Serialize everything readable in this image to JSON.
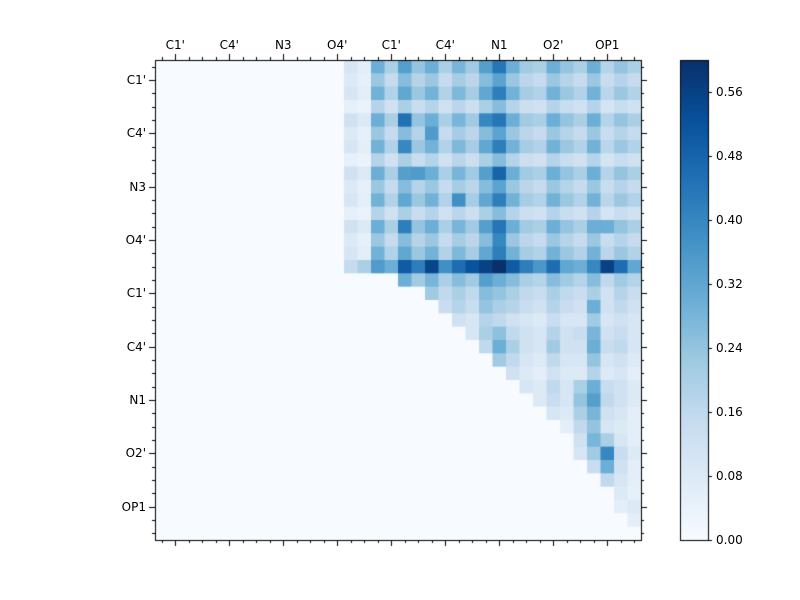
{
  "chart_data": {
    "type": "heatmap",
    "title": "",
    "xlabel": "",
    "ylabel": "",
    "x_labels": [
      "C1'",
      "C4'",
      "N3",
      "O4'",
      "C1'",
      "C4'",
      "N1",
      "O2'",
      "OP1"
    ],
    "y_labels": [
      "C1'",
      "C4'",
      "N3",
      "O4'",
      "C1'",
      "C4'",
      "N1",
      "O2'",
      "OP1"
    ],
    "label_cell_positions": [
      1,
      5,
      9,
      13,
      17,
      21,
      25,
      29,
      33
    ],
    "n": 36,
    "vmin": 0.0,
    "vmax": 0.6,
    "layout": {
      "upper_triangular": true,
      "grid": false,
      "colorbar_position": "right"
    },
    "colormap": {
      "name": "Blues",
      "stops": [
        "#f7fbff",
        "#deebf7",
        "#c6dbef",
        "#9ecae1",
        "#6baed6",
        "#4292c6",
        "#2171b5",
        "#08519c",
        "#08306b"
      ]
    },
    "frame_color": "#000000",
    "background_color": "#ffffff",
    "colorbar": {
      "tick_labels": [
        "0.00",
        "0.08",
        "0.16",
        "0.24",
        "0.32",
        "0.40",
        "0.48",
        "0.56"
      ],
      "tick_values": [
        0.0,
        0.08,
        0.16,
        0.24,
        0.32,
        0.4,
        0.48,
        0.56
      ]
    },
    "values": [
      [
        0,
        0,
        0,
        0,
        0,
        0,
        0,
        0,
        0,
        0,
        0,
        0,
        0,
        0,
        0.1,
        0.06,
        0.3,
        0.2,
        0.34,
        0.24,
        0.3,
        0.2,
        0.28,
        0.22,
        0.34,
        0.44,
        0.3,
        0.22,
        0.2,
        0.3,
        0.24,
        0.2,
        0.3,
        0.18,
        0.24,
        0.2
      ],
      [
        0,
        0,
        0,
        0,
        0,
        0,
        0,
        0,
        0,
        0,
        0,
        0,
        0,
        0,
        0.08,
        0.05,
        0.23,
        0.15,
        0.26,
        0.18,
        0.23,
        0.15,
        0.21,
        0.17,
        0.26,
        0.33,
        0.23,
        0.17,
        0.15,
        0.23,
        0.18,
        0.15,
        0.23,
        0.14,
        0.18,
        0.15
      ],
      [
        0,
        0,
        0,
        0,
        0,
        0,
        0,
        0,
        0,
        0,
        0,
        0,
        0,
        0,
        0.1,
        0.06,
        0.29,
        0.19,
        0.32,
        0.23,
        0.29,
        0.19,
        0.27,
        0.21,
        0.32,
        0.42,
        0.29,
        0.21,
        0.19,
        0.29,
        0.23,
        0.19,
        0.29,
        0.17,
        0.23,
        0.19
      ],
      [
        0,
        0,
        0,
        0,
        0,
        0,
        0,
        0,
        0,
        0,
        0,
        0,
        0,
        0,
        0.05,
        0.04,
        0.18,
        0.12,
        0.2,
        0.14,
        0.18,
        0.12,
        0.17,
        0.13,
        0.2,
        0.26,
        0.18,
        0.13,
        0.12,
        0.18,
        0.14,
        0.12,
        0.18,
        0.11,
        0.14,
        0.12
      ],
      [
        0,
        0,
        0,
        0,
        0,
        0,
        0,
        0,
        0,
        0,
        0,
        0,
        0,
        0,
        0.12,
        0.08,
        0.3,
        0.2,
        0.45,
        0.24,
        0.3,
        0.2,
        0.28,
        0.22,
        0.4,
        0.44,
        0.3,
        0.22,
        0.2,
        0.3,
        0.24,
        0.2,
        0.3,
        0.18,
        0.24,
        0.2
      ],
      [
        0,
        0,
        0,
        0,
        0,
        0,
        0,
        0,
        0,
        0,
        0,
        0,
        0,
        0,
        0.08,
        0.05,
        0.23,
        0.15,
        0.26,
        0.18,
        0.35,
        0.15,
        0.21,
        0.17,
        0.26,
        0.33,
        0.23,
        0.17,
        0.15,
        0.23,
        0.18,
        0.15,
        0.23,
        0.14,
        0.18,
        0.15
      ],
      [
        0,
        0,
        0,
        0,
        0,
        0,
        0,
        0,
        0,
        0,
        0,
        0,
        0,
        0,
        0.1,
        0.06,
        0.29,
        0.19,
        0.4,
        0.23,
        0.29,
        0.19,
        0.27,
        0.21,
        0.32,
        0.42,
        0.29,
        0.21,
        0.19,
        0.29,
        0.23,
        0.19,
        0.29,
        0.17,
        0.23,
        0.19
      ],
      [
        0,
        0,
        0,
        0,
        0,
        0,
        0,
        0,
        0,
        0,
        0,
        0,
        0,
        0,
        0.05,
        0.04,
        0.18,
        0.12,
        0.2,
        0.14,
        0.18,
        0.12,
        0.17,
        0.13,
        0.2,
        0.26,
        0.18,
        0.13,
        0.12,
        0.18,
        0.14,
        0.12,
        0.18,
        0.11,
        0.14,
        0.12
      ],
      [
        0,
        0,
        0,
        0,
        0,
        0,
        0,
        0,
        0,
        0,
        0,
        0,
        0,
        0,
        0.12,
        0.08,
        0.3,
        0.2,
        0.34,
        0.35,
        0.3,
        0.2,
        0.28,
        0.22,
        0.34,
        0.48,
        0.3,
        0.22,
        0.2,
        0.3,
        0.24,
        0.2,
        0.3,
        0.18,
        0.24,
        0.2
      ],
      [
        0,
        0,
        0,
        0,
        0,
        0,
        0,
        0,
        0,
        0,
        0,
        0,
        0,
        0,
        0.08,
        0.05,
        0.23,
        0.15,
        0.26,
        0.18,
        0.23,
        0.15,
        0.21,
        0.17,
        0.26,
        0.33,
        0.23,
        0.17,
        0.15,
        0.23,
        0.18,
        0.15,
        0.23,
        0.14,
        0.18,
        0.15
      ],
      [
        0,
        0,
        0,
        0,
        0,
        0,
        0,
        0,
        0,
        0,
        0,
        0,
        0,
        0,
        0.1,
        0.06,
        0.29,
        0.19,
        0.32,
        0.23,
        0.29,
        0.19,
        0.38,
        0.21,
        0.32,
        0.42,
        0.29,
        0.21,
        0.19,
        0.29,
        0.23,
        0.19,
        0.29,
        0.17,
        0.23,
        0.19
      ],
      [
        0,
        0,
        0,
        0,
        0,
        0,
        0,
        0,
        0,
        0,
        0,
        0,
        0,
        0,
        0.05,
        0.04,
        0.18,
        0.12,
        0.2,
        0.14,
        0.18,
        0.12,
        0.17,
        0.13,
        0.2,
        0.26,
        0.18,
        0.13,
        0.12,
        0.18,
        0.14,
        0.12,
        0.18,
        0.11,
        0.14,
        0.12
      ],
      [
        0,
        0,
        0,
        0,
        0,
        0,
        0,
        0,
        0,
        0,
        0,
        0,
        0,
        0,
        0.12,
        0.08,
        0.3,
        0.2,
        0.42,
        0.24,
        0.3,
        0.2,
        0.28,
        0.22,
        0.34,
        0.44,
        0.3,
        0.22,
        0.2,
        0.3,
        0.24,
        0.2,
        0.3,
        0.3,
        0.24,
        0.2
      ],
      [
        0,
        0,
        0,
        0,
        0,
        0,
        0,
        0,
        0,
        0,
        0,
        0,
        0,
        0,
        0.08,
        0.05,
        0.23,
        0.15,
        0.26,
        0.18,
        0.23,
        0.15,
        0.21,
        0.17,
        0.26,
        0.4,
        0.23,
        0.17,
        0.15,
        0.23,
        0.18,
        0.15,
        0.23,
        0.14,
        0.18,
        0.15
      ],
      [
        0,
        0,
        0,
        0,
        0,
        0,
        0,
        0,
        0,
        0,
        0,
        0,
        0,
        0,
        0.1,
        0.06,
        0.29,
        0.19,
        0.32,
        0.23,
        0.29,
        0.19,
        0.27,
        0.21,
        0.32,
        0.42,
        0.29,
        0.21,
        0.19,
        0.29,
        0.23,
        0.19,
        0.29,
        0.17,
        0.23,
        0.19
      ],
      [
        0,
        0,
        0,
        0,
        0,
        0,
        0,
        0,
        0,
        0,
        0,
        0,
        0,
        0,
        0.15,
        0.2,
        0.35,
        0.3,
        0.5,
        0.42,
        0.55,
        0.38,
        0.46,
        0.52,
        0.56,
        0.6,
        0.5,
        0.42,
        0.36,
        0.46,
        0.32,
        0.3,
        0.4,
        0.56,
        0.46,
        0.32
      ],
      [
        0,
        0,
        0,
        0,
        0,
        0,
        0,
        0,
        0,
        0,
        0,
        0,
        0,
        0,
        0,
        0,
        0,
        0,
        0.3,
        0.22,
        0.28,
        0.2,
        0.26,
        0.22,
        0.34,
        0.3,
        0.26,
        0.2,
        0.18,
        0.26,
        0.22,
        0.18,
        0.26,
        0.16,
        0.22,
        0.18
      ],
      [
        0,
        0,
        0,
        0,
        0,
        0,
        0,
        0,
        0,
        0,
        0,
        0,
        0,
        0,
        0,
        0,
        0,
        0,
        0,
        0,
        0.22,
        0.16,
        0.2,
        0.16,
        0.26,
        0.24,
        0.2,
        0.16,
        0.14,
        0.2,
        0.16,
        0.14,
        0.2,
        0.12,
        0.18,
        0.14
      ],
      [
        0,
        0,
        0,
        0,
        0,
        0,
        0,
        0,
        0,
        0,
        0,
        0,
        0,
        0,
        0,
        0,
        0,
        0,
        0,
        0,
        0,
        0.14,
        0.18,
        0.14,
        0.24,
        0.2,
        0.18,
        0.14,
        0.12,
        0.18,
        0.14,
        0.12,
        0.3,
        0.12,
        0.16,
        0.12
      ],
      [
        0,
        0,
        0,
        0,
        0,
        0,
        0,
        0,
        0,
        0,
        0,
        0,
        0,
        0,
        0,
        0,
        0,
        0,
        0,
        0,
        0,
        0,
        0.12,
        0.1,
        0.18,
        0.16,
        0.12,
        0.1,
        0.08,
        0.14,
        0.1,
        0.1,
        0.22,
        0.1,
        0.12,
        0.1
      ],
      [
        0,
        0,
        0,
        0,
        0,
        0,
        0,
        0,
        0,
        0,
        0,
        0,
        0,
        0,
        0,
        0,
        0,
        0,
        0,
        0,
        0,
        0,
        0,
        0.1,
        0.2,
        0.25,
        0.16,
        0.12,
        0.1,
        0.18,
        0.12,
        0.14,
        0.28,
        0.12,
        0.14,
        0.1
      ],
      [
        0,
        0,
        0,
        0,
        0,
        0,
        0,
        0,
        0,
        0,
        0,
        0,
        0,
        0,
        0,
        0,
        0,
        0,
        0,
        0,
        0,
        0,
        0,
        0,
        0.16,
        0.3,
        0.2,
        0.12,
        0.1,
        0.22,
        0.12,
        0.12,
        0.3,
        0.14,
        0.16,
        0.1
      ],
      [
        0,
        0,
        0,
        0,
        0,
        0,
        0,
        0,
        0,
        0,
        0,
        0,
        0,
        0,
        0,
        0,
        0,
        0,
        0,
        0,
        0,
        0,
        0,
        0,
        0,
        0.22,
        0.16,
        0.1,
        0.08,
        0.16,
        0.1,
        0.1,
        0.24,
        0.1,
        0.12,
        0.08
      ],
      [
        0,
        0,
        0,
        0,
        0,
        0,
        0,
        0,
        0,
        0,
        0,
        0,
        0,
        0,
        0,
        0,
        0,
        0,
        0,
        0,
        0,
        0,
        0,
        0,
        0,
        0,
        0.12,
        0.08,
        0.06,
        0.12,
        0.08,
        0.08,
        0.18,
        0.08,
        0.1,
        0.06
      ],
      [
        0,
        0,
        0,
        0,
        0,
        0,
        0,
        0,
        0,
        0,
        0,
        0,
        0,
        0,
        0,
        0,
        0,
        0,
        0,
        0,
        0,
        0,
        0,
        0,
        0,
        0,
        0,
        0.1,
        0.08,
        0.16,
        0.1,
        0.2,
        0.3,
        0.14,
        0.12,
        0.08
      ],
      [
        0,
        0,
        0,
        0,
        0,
        0,
        0,
        0,
        0,
        0,
        0,
        0,
        0,
        0,
        0,
        0,
        0,
        0,
        0,
        0,
        0,
        0,
        0,
        0,
        0,
        0,
        0,
        0,
        0.08,
        0.14,
        0.1,
        0.24,
        0.34,
        0.16,
        0.12,
        0.08
      ],
      [
        0,
        0,
        0,
        0,
        0,
        0,
        0,
        0,
        0,
        0,
        0,
        0,
        0,
        0,
        0,
        0,
        0,
        0,
        0,
        0,
        0,
        0,
        0,
        0,
        0,
        0,
        0,
        0,
        0,
        0.1,
        0.08,
        0.2,
        0.28,
        0.12,
        0.1,
        0.06
      ],
      [
        0,
        0,
        0,
        0,
        0,
        0,
        0,
        0,
        0,
        0,
        0,
        0,
        0,
        0,
        0,
        0,
        0,
        0,
        0,
        0,
        0,
        0,
        0,
        0,
        0,
        0,
        0,
        0,
        0,
        0,
        0.06,
        0.16,
        0.24,
        0.1,
        0.08,
        0.06
      ],
      [
        0,
        0,
        0,
        0,
        0,
        0,
        0,
        0,
        0,
        0,
        0,
        0,
        0,
        0,
        0,
        0,
        0,
        0,
        0,
        0,
        0,
        0,
        0,
        0,
        0,
        0,
        0,
        0,
        0,
        0,
        0,
        0.12,
        0.28,
        0.2,
        0.1,
        0.06
      ],
      [
        0,
        0,
        0,
        0,
        0,
        0,
        0,
        0,
        0,
        0,
        0,
        0,
        0,
        0,
        0,
        0,
        0,
        0,
        0,
        0,
        0,
        0,
        0,
        0,
        0,
        0,
        0,
        0,
        0,
        0,
        0,
        0.1,
        0.22,
        0.4,
        0.14,
        0.08
      ],
      [
        0,
        0,
        0,
        0,
        0,
        0,
        0,
        0,
        0,
        0,
        0,
        0,
        0,
        0,
        0,
        0,
        0,
        0,
        0,
        0,
        0,
        0,
        0,
        0,
        0,
        0,
        0,
        0,
        0,
        0,
        0,
        0,
        0.14,
        0.3,
        0.12,
        0.06
      ],
      [
        0,
        0,
        0,
        0,
        0,
        0,
        0,
        0,
        0,
        0,
        0,
        0,
        0,
        0,
        0,
        0,
        0,
        0,
        0,
        0,
        0,
        0,
        0,
        0,
        0,
        0,
        0,
        0,
        0,
        0,
        0,
        0,
        0,
        0.16,
        0.1,
        0.06
      ],
      [
        0,
        0,
        0,
        0,
        0,
        0,
        0,
        0,
        0,
        0,
        0,
        0,
        0,
        0,
        0,
        0,
        0,
        0,
        0,
        0,
        0,
        0,
        0,
        0,
        0,
        0,
        0,
        0,
        0,
        0,
        0,
        0,
        0,
        0,
        0.08,
        0.05
      ],
      [
        0,
        0,
        0,
        0,
        0,
        0,
        0,
        0,
        0,
        0,
        0,
        0,
        0,
        0,
        0,
        0,
        0,
        0,
        0,
        0,
        0,
        0,
        0,
        0,
        0,
        0,
        0,
        0,
        0,
        0,
        0,
        0,
        0,
        0,
        0.06,
        0.08
      ],
      [
        0,
        0,
        0,
        0,
        0,
        0,
        0,
        0,
        0,
        0,
        0,
        0,
        0,
        0,
        0,
        0,
        0,
        0,
        0,
        0,
        0,
        0,
        0,
        0,
        0,
        0,
        0,
        0,
        0,
        0,
        0,
        0,
        0,
        0,
        0,
        0.06
      ],
      [
        0,
        0,
        0,
        0,
        0,
        0,
        0,
        0,
        0,
        0,
        0,
        0,
        0,
        0,
        0,
        0,
        0,
        0,
        0,
        0,
        0,
        0,
        0,
        0,
        0,
        0,
        0,
        0,
        0,
        0,
        0,
        0,
        0,
        0,
        0,
        0
      ]
    ]
  }
}
